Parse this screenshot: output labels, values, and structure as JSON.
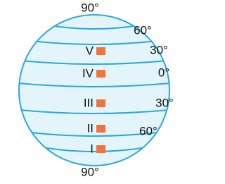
{
  "latitude_labels": [
    "90°",
    "60°",
    "30°",
    "0°",
    "30°",
    "60°",
    "90°"
  ],
  "zones": [
    "V",
    "IV",
    "III",
    "II",
    "I"
  ]
}
